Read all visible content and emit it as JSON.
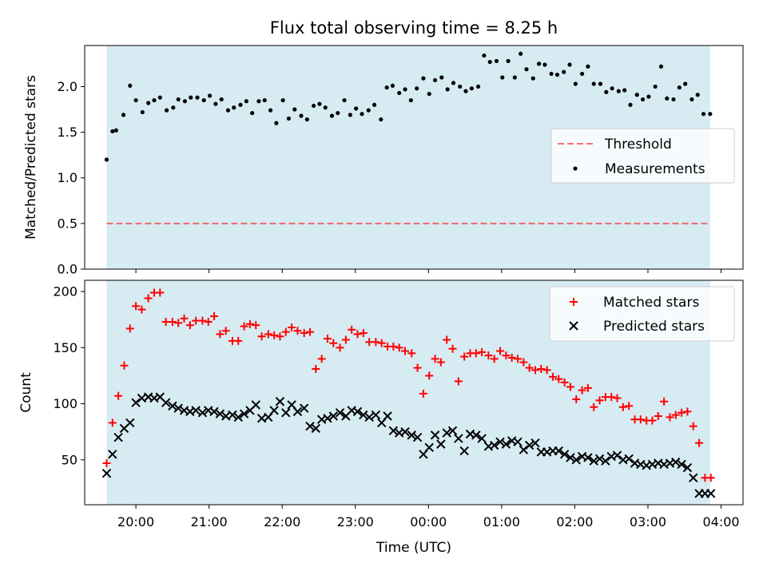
{
  "title": "Flux total observing time = 8.25 h",
  "xlabel": "Time (UTC)",
  "x_tick_labels": [
    "20:00",
    "21:00",
    "22:00",
    "23:00",
    "00:00",
    "01:00",
    "02:00",
    "03:00",
    "04:00"
  ],
  "colors": {
    "observing_band": "#add8e6",
    "threshold": "#ff0000",
    "measurements": "#000000",
    "matched": "#ff0000",
    "predicted": "#000000"
  },
  "chart_data": [
    {
      "type": "scatter",
      "ylabel": "Matched/Predicted stars",
      "ylim": [
        0,
        2.45
      ],
      "y_ticks": [
        0.0,
        0.5,
        1.0,
        1.5,
        2.0
      ],
      "y_tick_labels": [
        "0.0",
        "0.5",
        "1.0",
        "1.5",
        "2.0"
      ],
      "xlim_hours": [
        19.3,
        28.3
      ],
      "observing_band_hours": [
        19.6,
        27.85
      ],
      "legend_placement": "center-right",
      "threshold": {
        "name": "Threshold",
        "value": 0.5,
        "style": "dashed"
      },
      "series": [
        {
          "name": "Measurements",
          "x_hours": [
            19.6,
            19.68,
            19.73,
            19.83,
            19.92,
            20.0,
            20.09,
            20.17,
            20.25,
            20.33,
            20.42,
            20.51,
            20.58,
            20.67,
            20.75,
            20.84,
            20.93,
            21.01,
            21.09,
            21.17,
            21.26,
            21.34,
            21.43,
            21.51,
            21.59,
            21.68,
            21.76,
            21.84,
            21.92,
            22.01,
            22.09,
            22.17,
            22.26,
            22.34,
            22.43,
            22.51,
            22.59,
            22.68,
            22.76,
            22.85,
            22.93,
            23.01,
            23.09,
            23.18,
            23.26,
            23.35,
            23.43,
            23.51,
            23.6,
            23.68,
            23.76,
            23.84,
            23.93,
            24.01,
            24.09,
            24.18,
            24.26,
            24.34,
            24.43,
            24.51,
            24.59,
            24.68,
            24.76,
            24.84,
            24.93,
            25.01,
            25.09,
            25.18,
            25.26,
            25.34,
            25.43,
            25.51,
            25.59,
            25.68,
            25.76,
            25.85,
            25.93,
            26.01,
            26.1,
            26.18,
            26.26,
            26.35,
            26.43,
            26.51,
            26.6,
            26.68,
            26.76,
            26.85,
            26.93,
            27.01,
            27.1,
            27.18,
            27.26,
            27.35,
            27.43,
            27.51,
            27.6,
            27.68,
            27.76,
            27.85
          ],
          "values": [
            1.2,
            1.51,
            1.52,
            1.69,
            2.01,
            1.85,
            1.72,
            1.82,
            1.85,
            1.88,
            1.74,
            1.77,
            1.86,
            1.84,
            1.88,
            1.88,
            1.85,
            1.9,
            1.81,
            1.86,
            1.74,
            1.77,
            1.8,
            1.84,
            1.71,
            1.84,
            1.85,
            1.74,
            1.6,
            1.85,
            1.65,
            1.75,
            1.68,
            1.64,
            1.79,
            1.81,
            1.77,
            1.68,
            1.71,
            1.85,
            1.69,
            1.76,
            1.7,
            1.74,
            1.8,
            1.64,
            1.99,
            2.01,
            1.93,
            1.97,
            1.85,
            1.98,
            2.09,
            1.92,
            2.07,
            2.1,
            1.97,
            2.04,
            2.0,
            1.95,
            1.98,
            2.0,
            2.34,
            2.27,
            2.28,
            2.1,
            2.28,
            2.1,
            2.36,
            2.19,
            2.09,
            2.25,
            2.24,
            2.14,
            2.13,
            2.16,
            2.24,
            2.03,
            2.14,
            2.22,
            2.03,
            2.03,
            1.94,
            1.98,
            1.95,
            1.96,
            1.8,
            1.91,
            1.86,
            1.89,
            2.0,
            2.22,
            1.87,
            1.86,
            1.99,
            2.03,
            1.86,
            1.91,
            1.7,
            1.7
          ]
        }
      ]
    },
    {
      "type": "scatter",
      "ylabel": "Count",
      "ylim": [
        10,
        210
      ],
      "y_ticks": [
        50,
        100,
        150,
        200
      ],
      "y_tick_labels": [
        "50",
        "100",
        "150",
        "200"
      ],
      "xlim_hours": [
        19.3,
        28.3
      ],
      "observing_band_hours": [
        19.6,
        27.85
      ],
      "legend_placement": "upper right",
      "series": [
        {
          "name": "Matched stars",
          "marker": "plus",
          "x_hours": [
            19.6,
            19.68,
            19.76,
            19.84,
            19.92,
            20.0,
            20.08,
            20.17,
            20.25,
            20.33,
            20.41,
            20.5,
            20.58,
            20.66,
            20.74,
            20.82,
            20.91,
            20.99,
            21.07,
            21.15,
            21.23,
            21.32,
            21.4,
            21.48,
            21.56,
            21.64,
            21.72,
            21.81,
            21.89,
            21.97,
            22.05,
            22.13,
            22.21,
            22.3,
            22.38,
            22.46,
            22.54,
            22.62,
            22.7,
            22.79,
            22.87,
            22.95,
            23.03,
            23.11,
            23.19,
            23.28,
            23.36,
            23.44,
            23.52,
            23.6,
            23.68,
            23.77,
            23.85,
            23.93,
            24.01,
            24.09,
            24.17,
            24.25,
            24.33,
            24.41,
            24.49,
            24.57,
            24.65,
            24.73,
            24.82,
            24.9,
            24.98,
            25.06,
            25.14,
            25.22,
            25.3,
            25.38,
            25.46,
            25.54,
            25.62,
            25.7,
            25.78,
            25.86,
            25.94,
            26.02,
            26.1,
            26.18,
            26.26,
            26.34,
            26.42,
            26.5,
            26.58,
            26.66,
            26.74,
            26.82,
            26.9,
            26.98,
            27.06,
            27.14,
            27.22,
            27.3,
            27.38,
            27.46,
            27.54,
            27.62,
            27.7,
            27.78,
            27.86
          ],
          "values": [
            47,
            83,
            107,
            134,
            167,
            187,
            184,
            194,
            199,
            199,
            173,
            173,
            172,
            176,
            170,
            174,
            174,
            173,
            178,
            162,
            165,
            156,
            156,
            169,
            171,
            170,
            160,
            162,
            161,
            160,
            164,
            168,
            165,
            163,
            164,
            131,
            140,
            158,
            154,
            150,
            157,
            166,
            162,
            163,
            155,
            155,
            154,
            151,
            151,
            150,
            147,
            145,
            132,
            109,
            125,
            140,
            137,
            157,
            149,
            120,
            142,
            145,
            145,
            146,
            143,
            140,
            147,
            143,
            141,
            140,
            137,
            132,
            130,
            131,
            130,
            124,
            122,
            119,
            115,
            104,
            112,
            114,
            97,
            103,
            106,
            106,
            105,
            97,
            98,
            86,
            86,
            85,
            85,
            89,
            102,
            88,
            90,
            92,
            93,
            80,
            65,
            34,
            34
          ]
        },
        {
          "name": "Predicted stars",
          "marker": "x",
          "x_hours": [
            19.6,
            19.68,
            19.76,
            19.84,
            19.92,
            20.0,
            20.08,
            20.17,
            20.25,
            20.33,
            20.41,
            20.5,
            20.58,
            20.66,
            20.74,
            20.82,
            20.91,
            20.99,
            21.07,
            21.15,
            21.23,
            21.32,
            21.4,
            21.48,
            21.56,
            21.64,
            21.72,
            21.81,
            21.89,
            21.97,
            22.05,
            22.13,
            22.21,
            22.3,
            22.38,
            22.46,
            22.54,
            22.62,
            22.7,
            22.79,
            22.87,
            22.95,
            23.03,
            23.11,
            23.19,
            23.28,
            23.36,
            23.44,
            23.52,
            23.6,
            23.68,
            23.77,
            23.85,
            23.93,
            24.01,
            24.09,
            24.17,
            24.25,
            24.33,
            24.41,
            24.49,
            24.57,
            24.65,
            24.73,
            24.82,
            24.9,
            24.98,
            25.06,
            25.14,
            25.22,
            25.3,
            25.38,
            25.46,
            25.54,
            25.62,
            25.7,
            25.78,
            25.86,
            25.94,
            26.02,
            26.1,
            26.18,
            26.26,
            26.34,
            26.42,
            26.5,
            26.58,
            26.66,
            26.74,
            26.82,
            26.9,
            26.98,
            27.06,
            27.14,
            27.22,
            27.3,
            27.38,
            27.46,
            27.54,
            27.62,
            27.7,
            27.78,
            27.86
          ],
          "values": [
            38,
            55,
            70,
            78,
            83,
            101,
            105,
            106,
            105,
            106,
            101,
            98,
            96,
            94,
            93,
            94,
            92,
            94,
            93,
            91,
            89,
            90,
            88,
            91,
            94,
            99,
            87,
            88,
            94,
            102,
            92,
            99,
            93,
            96,
            80,
            78,
            86,
            87,
            89,
            92,
            89,
            94,
            93,
            90,
            88,
            90,
            83,
            89,
            76,
            74,
            75,
            72,
            70,
            55,
            61,
            72,
            64,
            74,
            76,
            69,
            58,
            73,
            72,
            69,
            62,
            63,
            66,
            64,
            67,
            66,
            59,
            63,
            65,
            57,
            57,
            58,
            58,
            55,
            52,
            50,
            53,
            52,
            49,
            51,
            49,
            53,
            54,
            50,
            51,
            47,
            46,
            45,
            46,
            47,
            46,
            47,
            48,
            46,
            43,
            34,
            20,
            20,
            20
          ]
        }
      ]
    }
  ]
}
